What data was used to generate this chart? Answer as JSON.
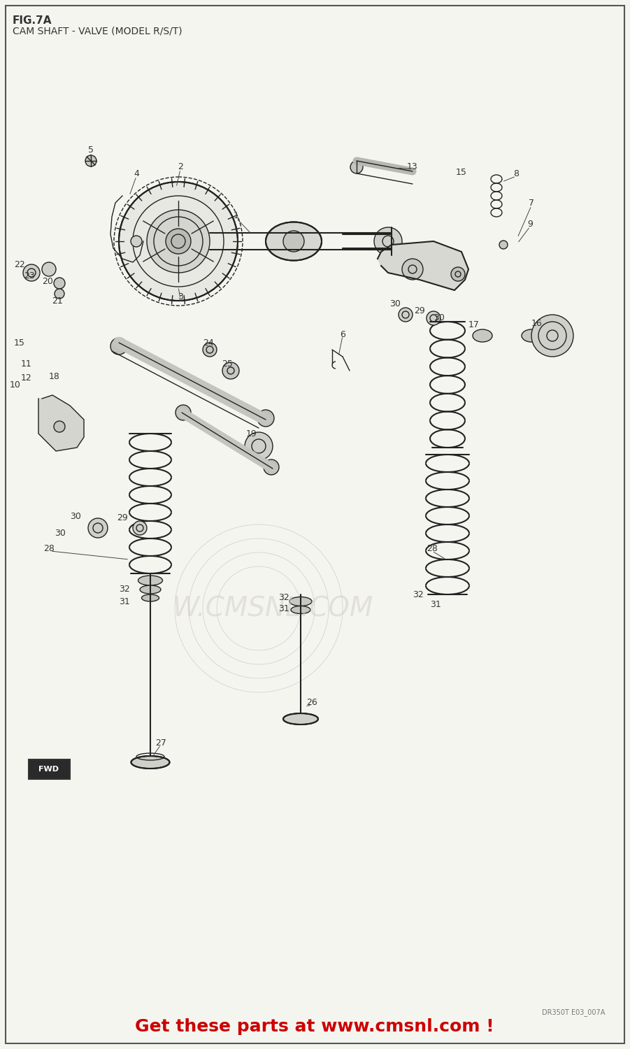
{
  "title_line1": "FIG.7A",
  "title_line2": "CAM SHAFT - VALVE (MODEL R/S/T)",
  "footer_text": "Get these parts at www.cmsnl.com !",
  "footer_small": "DR350T E03_007A",
  "background_color": "#f5f5f0",
  "border_color": "#555555",
  "text_color": "#333333",
  "footer_color": "#cc0000",
  "diagram_color": "#222222",
  "watermark_color": "#d0ccc8",
  "fig_width": 9.01,
  "fig_height": 15.0
}
